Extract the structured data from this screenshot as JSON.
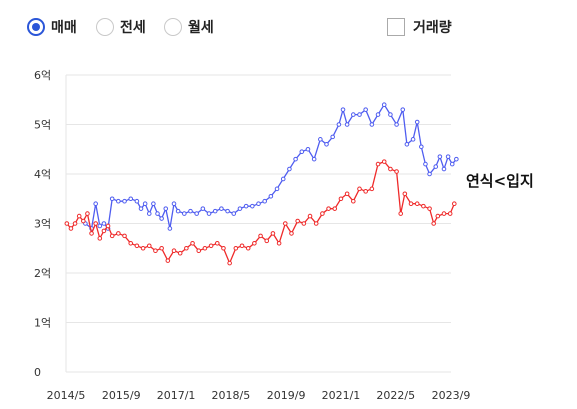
{
  "controls": {
    "radios": [
      {
        "label": "매매",
        "checked": true
      },
      {
        "label": "전세",
        "checked": false
      },
      {
        "label": "월세",
        "checked": false
      }
    ],
    "volume_checkbox": {
      "label": "거래량",
      "checked": false
    }
  },
  "annotation": "연식<입지",
  "colors": {
    "blue": "#4f5df0",
    "red": "#ef2a2a",
    "grid": "#e6e6e6",
    "accent": "#2b56d8"
  },
  "chart_data": {
    "type": "line",
    "title": "",
    "xlabel": "",
    "ylabel": "",
    "unit": "억",
    "ylim": [
      0,
      6
    ],
    "xlim": [
      2014.33,
      2023.67
    ],
    "grid": true,
    "y_ticks": [
      {
        "value": 0,
        "label": "0"
      },
      {
        "value": 1,
        "label": "1억"
      },
      {
        "value": 2,
        "label": "2억"
      },
      {
        "value": 3,
        "label": "3억"
      },
      {
        "value": 4,
        "label": "4억"
      },
      {
        "value": 5,
        "label": "5억"
      },
      {
        "value": 6,
        "label": "6억"
      }
    ],
    "x_ticks": [
      {
        "value": 2014.33,
        "label": "2014/5"
      },
      {
        "value": 2015.67,
        "label": "2015/9"
      },
      {
        "value": 2017.0,
        "label": "2017/1"
      },
      {
        "value": 2018.33,
        "label": "2018/5"
      },
      {
        "value": 2019.67,
        "label": "2019/9"
      },
      {
        "value": 2021.0,
        "label": "2021/1"
      },
      {
        "value": 2022.33,
        "label": "2022/5"
      },
      {
        "value": 2023.67,
        "label": "2023/9"
      }
    ],
    "series": [
      {
        "color": "#4f5df0",
        "points": [
          [
            2014.8,
            3.0
          ],
          [
            2014.95,
            2.9
          ],
          [
            2015.05,
            3.4
          ],
          [
            2015.15,
            2.95
          ],
          [
            2015.25,
            3.0
          ],
          [
            2015.35,
            2.9
          ],
          [
            2015.45,
            3.5
          ],
          [
            2015.6,
            3.45
          ],
          [
            2015.75,
            3.45
          ],
          [
            2015.9,
            3.5
          ],
          [
            2016.05,
            3.45
          ],
          [
            2016.15,
            3.3
          ],
          [
            2016.25,
            3.4
          ],
          [
            2016.35,
            3.2
          ],
          [
            2016.45,
            3.4
          ],
          [
            2016.55,
            3.2
          ],
          [
            2016.65,
            3.1
          ],
          [
            2016.75,
            3.3
          ],
          [
            2016.85,
            2.9
          ],
          [
            2016.95,
            3.4
          ],
          [
            2017.05,
            3.25
          ],
          [
            2017.2,
            3.2
          ],
          [
            2017.35,
            3.25
          ],
          [
            2017.5,
            3.2
          ],
          [
            2017.65,
            3.3
          ],
          [
            2017.8,
            3.2
          ],
          [
            2017.95,
            3.25
          ],
          [
            2018.1,
            3.3
          ],
          [
            2018.25,
            3.25
          ],
          [
            2018.4,
            3.2
          ],
          [
            2018.55,
            3.3
          ],
          [
            2018.7,
            3.35
          ],
          [
            2018.85,
            3.35
          ],
          [
            2019.0,
            3.4
          ],
          [
            2019.15,
            3.45
          ],
          [
            2019.3,
            3.55
          ],
          [
            2019.45,
            3.7
          ],
          [
            2019.6,
            3.9
          ],
          [
            2019.75,
            4.1
          ],
          [
            2019.9,
            4.3
          ],
          [
            2020.05,
            4.45
          ],
          [
            2020.2,
            4.5
          ],
          [
            2020.35,
            4.3
          ],
          [
            2020.5,
            4.7
          ],
          [
            2020.65,
            4.6
          ],
          [
            2020.8,
            4.75
          ],
          [
            2020.95,
            5.0
          ],
          [
            2021.05,
            5.3
          ],
          [
            2021.15,
            5.0
          ],
          [
            2021.3,
            5.2
          ],
          [
            2021.45,
            5.2
          ],
          [
            2021.6,
            5.3
          ],
          [
            2021.75,
            5.0
          ],
          [
            2021.9,
            5.2
          ],
          [
            2022.05,
            5.4
          ],
          [
            2022.2,
            5.2
          ],
          [
            2022.35,
            5.0
          ],
          [
            2022.5,
            5.3
          ],
          [
            2022.6,
            4.6
          ],
          [
            2022.75,
            4.7
          ],
          [
            2022.85,
            5.05
          ],
          [
            2022.95,
            4.55
          ],
          [
            2023.05,
            4.2
          ],
          [
            2023.15,
            4.0
          ],
          [
            2023.3,
            4.15
          ],
          [
            2023.4,
            4.35
          ],
          [
            2023.5,
            4.1
          ],
          [
            2023.6,
            4.35
          ],
          [
            2023.7,
            4.2
          ],
          [
            2023.8,
            4.3
          ]
        ]
      },
      {
        "color": "#ef2a2a",
        "points": [
          [
            2014.35,
            3.0
          ],
          [
            2014.45,
            2.9
          ],
          [
            2014.55,
            3.0
          ],
          [
            2014.65,
            3.15
          ],
          [
            2014.75,
            3.05
          ],
          [
            2014.85,
            3.2
          ],
          [
            2014.95,
            2.8
          ],
          [
            2015.05,
            3.0
          ],
          [
            2015.15,
            2.7
          ],
          [
            2015.25,
            2.85
          ],
          [
            2015.35,
            2.95
          ],
          [
            2015.45,
            2.75
          ],
          [
            2015.6,
            2.8
          ],
          [
            2015.75,
            2.75
          ],
          [
            2015.9,
            2.6
          ],
          [
            2016.05,
            2.55
          ],
          [
            2016.2,
            2.5
          ],
          [
            2016.35,
            2.55
          ],
          [
            2016.5,
            2.45
          ],
          [
            2016.65,
            2.5
          ],
          [
            2016.8,
            2.25
          ],
          [
            2016.95,
            2.45
          ],
          [
            2017.1,
            2.4
          ],
          [
            2017.25,
            2.5
          ],
          [
            2017.4,
            2.6
          ],
          [
            2017.55,
            2.45
          ],
          [
            2017.7,
            2.5
          ],
          [
            2017.85,
            2.55
          ],
          [
            2018.0,
            2.6
          ],
          [
            2018.15,
            2.5
          ],
          [
            2018.3,
            2.2
          ],
          [
            2018.45,
            2.5
          ],
          [
            2018.6,
            2.55
          ],
          [
            2018.75,
            2.5
          ],
          [
            2018.9,
            2.6
          ],
          [
            2019.05,
            2.75
          ],
          [
            2019.2,
            2.65
          ],
          [
            2019.35,
            2.8
          ],
          [
            2019.5,
            2.6
          ],
          [
            2019.65,
            3.0
          ],
          [
            2019.8,
            2.8
          ],
          [
            2019.95,
            3.05
          ],
          [
            2020.1,
            3.0
          ],
          [
            2020.25,
            3.15
          ],
          [
            2020.4,
            3.0
          ],
          [
            2020.55,
            3.2
          ],
          [
            2020.7,
            3.3
          ],
          [
            2020.85,
            3.3
          ],
          [
            2021.0,
            3.5
          ],
          [
            2021.15,
            3.6
          ],
          [
            2021.3,
            3.45
          ],
          [
            2021.45,
            3.7
          ],
          [
            2021.6,
            3.65
          ],
          [
            2021.75,
            3.7
          ],
          [
            2021.9,
            4.2
          ],
          [
            2022.05,
            4.25
          ],
          [
            2022.2,
            4.1
          ],
          [
            2022.35,
            4.05
          ],
          [
            2022.45,
            3.2
          ],
          [
            2022.55,
            3.6
          ],
          [
            2022.7,
            3.4
          ],
          [
            2022.85,
            3.4
          ],
          [
            2023.0,
            3.35
          ],
          [
            2023.15,
            3.3
          ],
          [
            2023.25,
            3.0
          ],
          [
            2023.35,
            3.15
          ],
          [
            2023.5,
            3.2
          ],
          [
            2023.65,
            3.2
          ],
          [
            2023.75,
            3.4
          ]
        ]
      }
    ]
  }
}
